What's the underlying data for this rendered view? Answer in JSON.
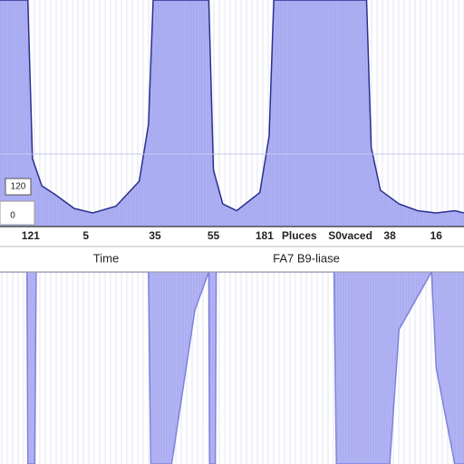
{
  "chart_data": {
    "type": "area",
    "xlim": [
      0,
      100
    ],
    "ylim": [
      0,
      100
    ],
    "xticks": [
      {
        "value": 6.6,
        "label": "121"
      },
      {
        "value": 18.5,
        "label": "5"
      },
      {
        "value": 33.4,
        "label": "35"
      },
      {
        "value": 46,
        "label": "55"
      },
      {
        "value": 57,
        "label": "181"
      },
      {
        "value": 64.5,
        "label": "Pluces"
      },
      {
        "value": 75.5,
        "label": "S0vaced"
      },
      {
        "value": 84,
        "label": "38"
      },
      {
        "value": 94,
        "label": "16"
      }
    ],
    "x_axis_labels": [
      "Time",
      "FA7 B9-liase"
    ],
    "annotations": [
      "120",
      "0"
    ],
    "series": [
      {
        "color": "#aeb1f3",
        "line_color": "#2c2f8f",
        "x": [
          0,
          6,
          7,
          9,
          12,
          16,
          20,
          25,
          30,
          32,
          33,
          36,
          45,
          46,
          48,
          51,
          56,
          58,
          59,
          79,
          80,
          82,
          86,
          90,
          94,
          98,
          100
        ],
        "values": [
          100,
          100,
          30,
          18,
          14,
          8,
          6,
          9,
          20,
          45,
          100,
          100,
          100,
          25,
          10,
          7,
          15,
          40,
          100,
          100,
          35,
          16,
          10,
          7,
          6,
          7,
          6
        ]
      },
      {
        "color": "#b3b5f4",
        "line_color": "#7f82dd",
        "x": [
          0,
          5.8,
          6,
          7.5,
          7.8,
          32,
          32.5,
          37,
          42,
          45,
          45.2,
          46.4,
          46.6,
          72,
          72.5,
          84,
          86,
          93,
          94,
          98,
          100
        ],
        "values": [
          0,
          0,
          100,
          100,
          0,
          0,
          100,
          100,
          20,
          0,
          100,
          100,
          0,
          0,
          100,
          100,
          30,
          0,
          50,
          100,
          100
        ]
      }
    ]
  }
}
